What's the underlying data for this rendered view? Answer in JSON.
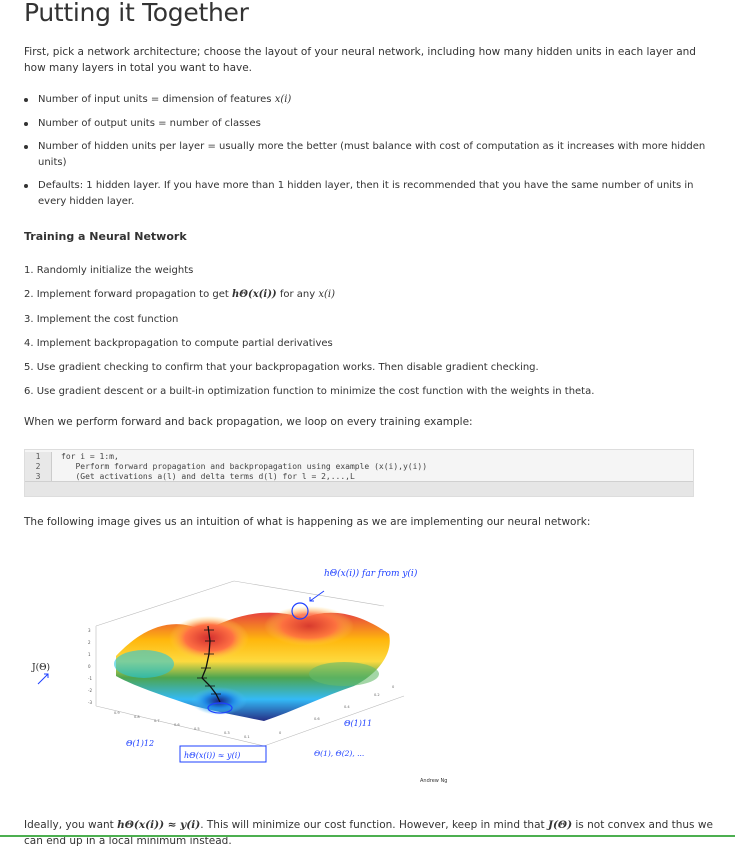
{
  "title": "Putting it Together",
  "intro": "First, pick a network architecture; choose the layout of your neural network, including how many hidden units in each layer and how many layers in total you want to have.",
  "bullets": [
    "Number of input units = dimension of features ",
    "Number of output units = number of classes",
    "Number of hidden units per layer = usually more the better (must balance with cost of computation as it increases with more hidden units)",
    "Defaults: 1 hidden layer. If you have more than 1 hidden layer, then it is recommended that you have the same number of units in every hidden layer."
  ],
  "bullet_math": "x(i)",
  "section_heading": "Training a Neural Network",
  "steps": [
    "1. Randomly initialize the weights",
    "2. Implement forward propagation to get ",
    "3. Implement the cost function",
    "4. Implement backpropagation to compute partial derivatives",
    "5. Use gradient checking to confirm that your backpropagation works. Then disable gradient checking.",
    "6. Use gradient descent or a built-in optimization function to minimize the cost function with the weights in theta."
  ],
  "step2_math": "hΘ(x(i))",
  "step2_suffix": " for any ",
  "step2_math2": "x(i)",
  "loop_sentence": "When we perform forward and back propagation, we loop on every training example:",
  "code_lines": [
    {
      "num": "1",
      "text": "for i = 1:m,"
    },
    {
      "num": "2",
      "text": "   Perform forward propagation and backpropagation using example (x(i),y(i))"
    },
    {
      "num": "3",
      "text": "   (Get activations a(l) and delta terms d(l) for l = 2,...,L"
    }
  ],
  "intuition_sentence": "The following image gives us an intuition of what is happening as we are implementing our neural network:",
  "figure": {
    "ylabel": "J(Θ)",
    "theta12": "Θ(1)12",
    "theta11": "Θ(1)11",
    "note_top": "hΘ(x(i)) far from y(i)",
    "note_bottom": "hΘ(x(i)) ≈ y(i)",
    "note_thetas": "Θ(1), Θ(2), ...",
    "signature": "Andrew Ng"
  },
  "bottom_text_1": "Ideally, you want ",
  "bottom_math_1": "hΘ(x(i)) ≈ y(i)",
  "bottom_text_2": ". This will minimize our cost function. However, keep in mind that ",
  "bottom_math_2": "J(Θ)",
  "bottom_text_3": " is not convex and thus we can end up in a local minimum instead."
}
